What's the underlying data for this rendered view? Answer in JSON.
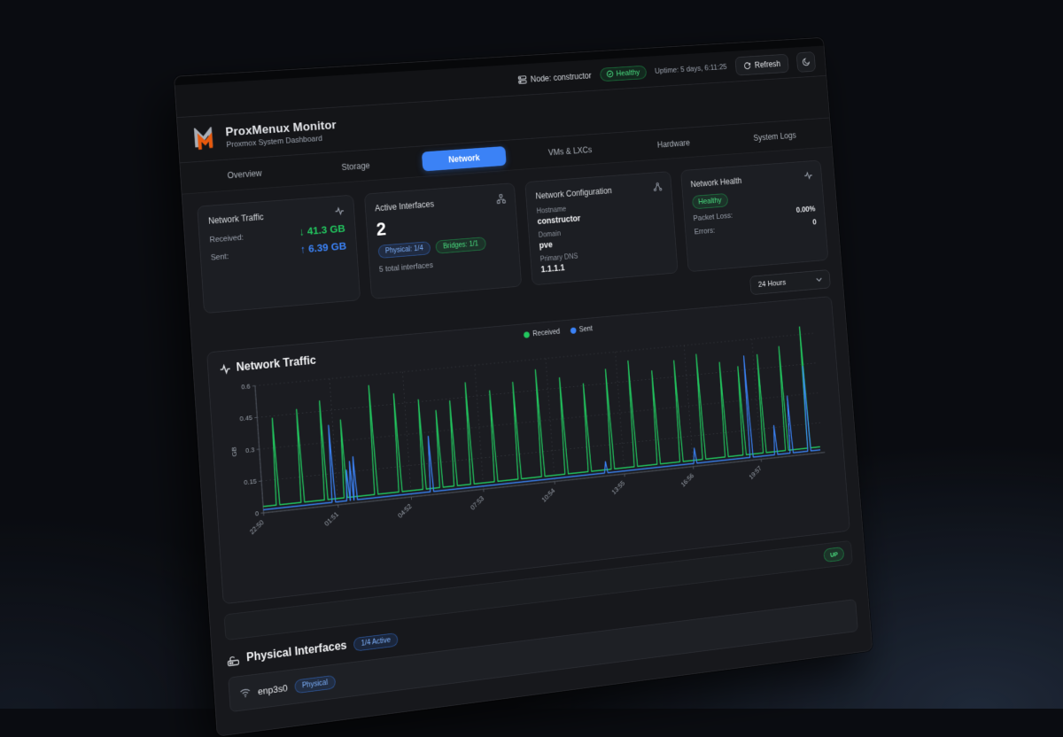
{
  "topbar": {
    "node_label": "Node: constructor",
    "health_badge": "Healthy",
    "uptime": "Uptime: 5 days, 6:11:25",
    "refresh_label": "Refresh"
  },
  "header": {
    "title": "ProxMenux Monitor",
    "subtitle": "Proxmox System Dashboard"
  },
  "tabs": [
    {
      "label": "Overview",
      "active": false
    },
    {
      "label": "Storage",
      "active": false
    },
    {
      "label": "Network",
      "active": true
    },
    {
      "label": "VMs & LXCs",
      "active": false
    },
    {
      "label": "Hardware",
      "active": false
    },
    {
      "label": "System Logs",
      "active": false
    }
  ],
  "cards": {
    "traffic": {
      "title": "Network Traffic",
      "received_label": "Received:",
      "received_value": "↓ 41.3 GB",
      "sent_label": "Sent:",
      "sent_value": "↑ 6.39 GB"
    },
    "interfaces": {
      "title": "Active Interfaces",
      "count": "2",
      "physical_badge": "Physical: 1/4",
      "bridges_badge": "Bridges: 1/1",
      "total": "5 total interfaces"
    },
    "config": {
      "title": "Network Configuration",
      "hostname_label": "Hostname",
      "hostname": "constructor",
      "domain_label": "Domain",
      "domain": "pve",
      "dns_label": "Primary DNS",
      "dns": "1.1.1.1"
    },
    "health": {
      "title": "Network Health",
      "status_badge": "Healthy",
      "packet_loss_label": "Packet Loss:",
      "packet_loss": "0.00%",
      "errors_label": "Errors:",
      "errors": "0"
    }
  },
  "time_range_select": {
    "value": "24 Hours"
  },
  "chart_section": {
    "title": "Network Traffic",
    "legend": [
      {
        "label": "Received",
        "color": "#22c55e"
      },
      {
        "label": "Sent",
        "color": "#3b82f6"
      }
    ]
  },
  "chart_data": {
    "type": "line",
    "title": "Network Traffic",
    "xlabel": "",
    "ylabel": "GB",
    "ylim": [
      0,
      0.6
    ],
    "y_ticks": [
      0,
      0.15,
      0.3,
      0.45,
      0.6
    ],
    "x_max_hours": 24,
    "grid": true,
    "legend_position": "top-center",
    "x_ticks": [
      {
        "t": 0,
        "label": "22:50"
      },
      {
        "t": 3.02,
        "label": "01:51"
      },
      {
        "t": 6.03,
        "label": "04:52"
      },
      {
        "t": 9.05,
        "label": "07:53"
      },
      {
        "t": 12.07,
        "label": "10:54"
      },
      {
        "t": 15.08,
        "label": "13:55"
      },
      {
        "t": 18.1,
        "label": "16:56"
      },
      {
        "t": 21.12,
        "label": "19:57"
      }
    ],
    "series": [
      {
        "name": "Received",
        "color": "#22c55e",
        "baseline": 0.03,
        "spikes": [
          [
            0.6,
            0.44
          ],
          [
            1.6,
            0.47
          ],
          [
            2.55,
            0.5
          ],
          [
            3.35,
            0.4
          ],
          [
            4.6,
            0.55
          ],
          [
            5.6,
            0.5
          ],
          [
            6.6,
            0.46
          ],
          [
            7.3,
            0.4
          ],
          [
            7.9,
            0.44
          ],
          [
            8.6,
            0.52
          ],
          [
            9.6,
            0.47
          ],
          [
            10.6,
            0.5
          ],
          [
            11.6,
            0.55
          ],
          [
            12.6,
            0.5
          ],
          [
            13.6,
            0.46
          ],
          [
            14.6,
            0.52
          ],
          [
            15.6,
            0.55
          ],
          [
            16.6,
            0.49
          ],
          [
            17.6,
            0.53
          ],
          [
            18.6,
            0.55
          ],
          [
            19.6,
            0.5
          ],
          [
            20.4,
            0.47
          ],
          [
            21.3,
            0.52
          ],
          [
            22.3,
            0.55
          ],
          [
            23.3,
            0.65
          ]
        ]
      },
      {
        "name": "Sent",
        "color": "#3b82f6",
        "baseline": 0.015,
        "spikes": [
          [
            2.85,
            0.38
          ],
          [
            3.45,
            0.16
          ],
          [
            3.6,
            0.2
          ],
          [
            3.75,
            0.22
          ],
          [
            6.9,
            0.28
          ],
          [
            14.3,
            0.07
          ],
          [
            18.2,
            0.09
          ],
          [
            20.7,
            0.52
          ],
          [
            21.8,
            0.16
          ],
          [
            22.5,
            0.3
          ],
          [
            23.3,
            0.44
          ]
        ]
      }
    ]
  },
  "status_row": {
    "up_badge": "UP"
  },
  "physical_section": {
    "title": "Physical Interfaces",
    "active_badge": "1/4 Active",
    "rows": [
      {
        "name": "enp3s0",
        "type_badge": "Physical"
      }
    ]
  }
}
